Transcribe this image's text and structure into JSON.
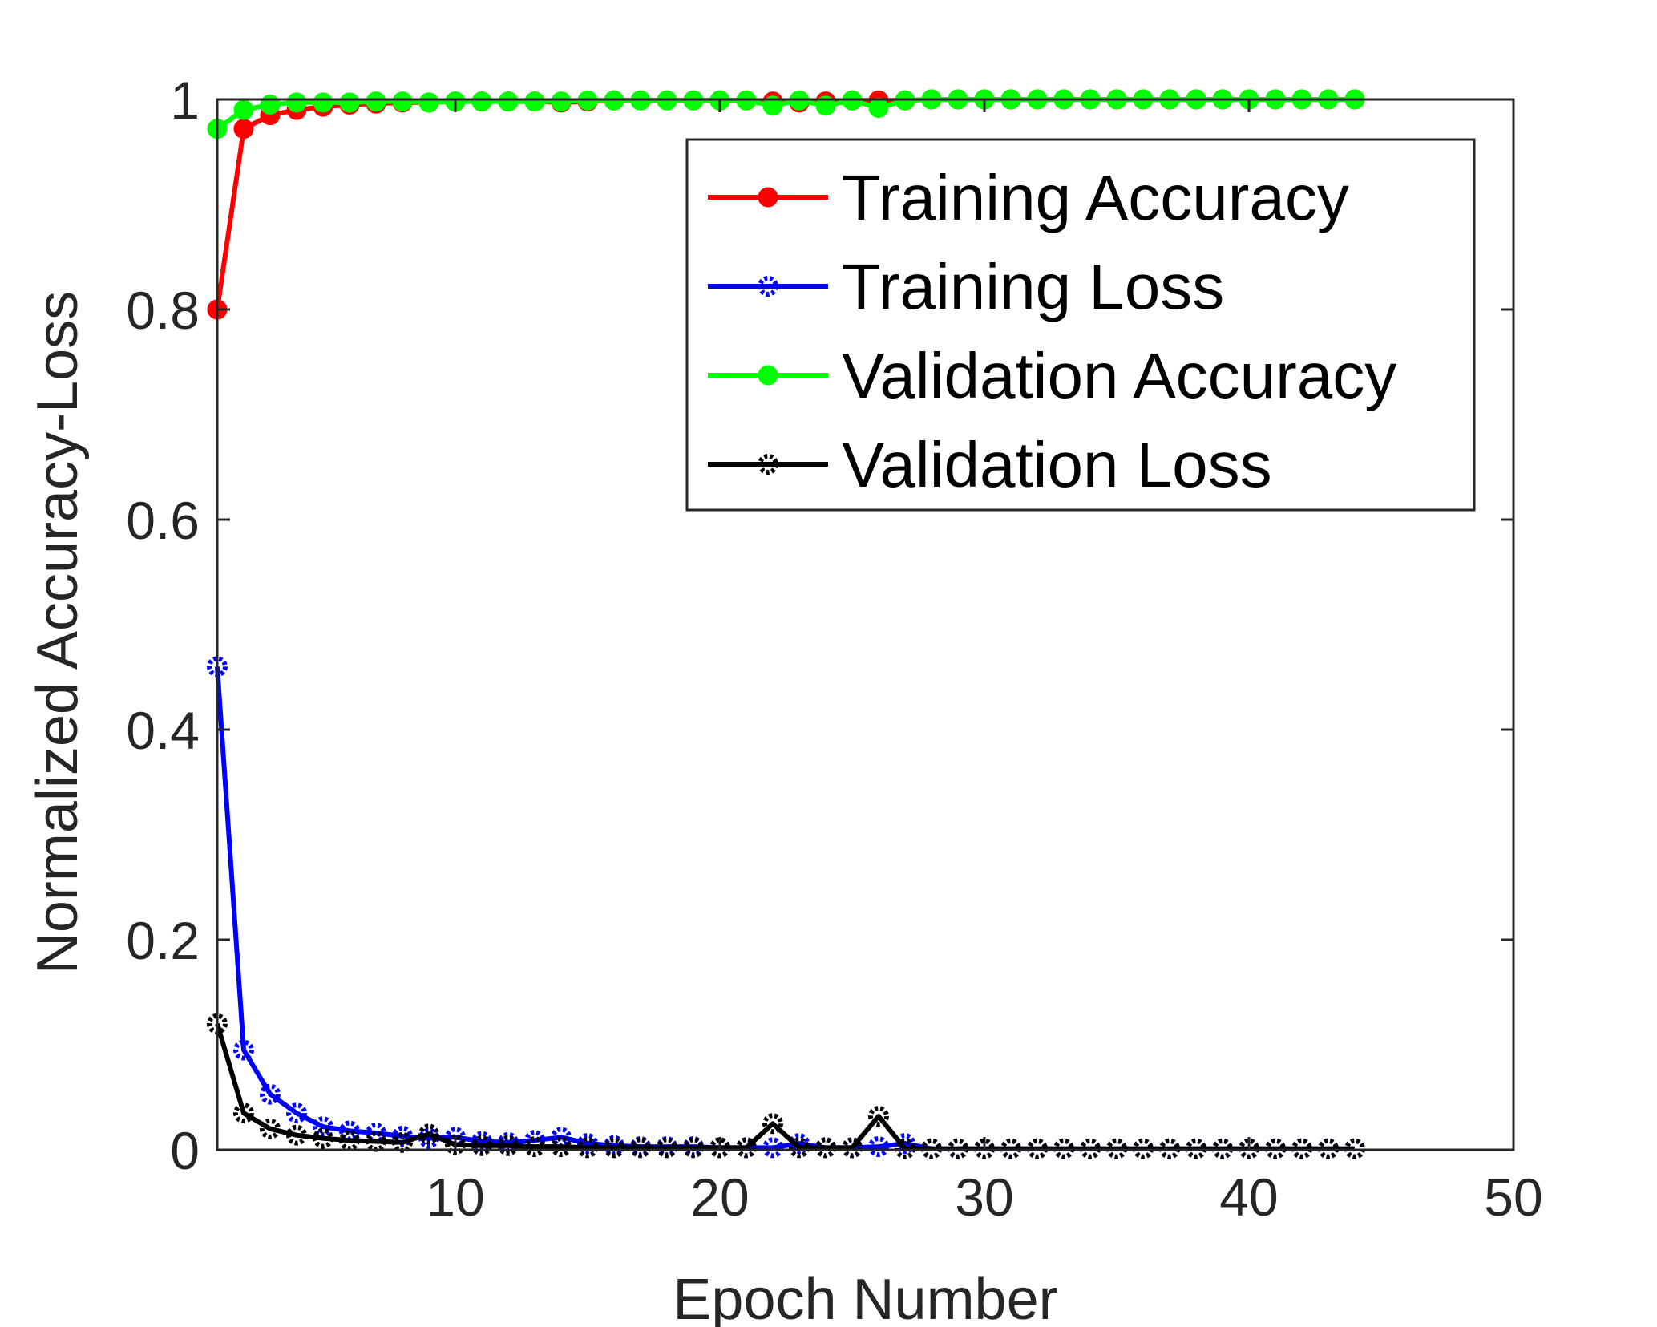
{
  "chart_data": {
    "type": "line",
    "title": "",
    "xlabel": "Epoch Number",
    "ylabel": "Normalized Accuracy-Loss",
    "xlim": [
      1,
      50
    ],
    "ylim": [
      0,
      1
    ],
    "xticks": [
      10,
      20,
      30,
      40,
      50
    ],
    "yticks": [
      0,
      0.2,
      0.4,
      0.6,
      0.8,
      1
    ],
    "ytick_labels": [
      "0",
      "0.2",
      "0.4",
      "0.6",
      "0.8",
      "1"
    ],
    "grid": false,
    "legend_position": "top-right",
    "x": [
      1,
      2,
      3,
      4,
      5,
      6,
      7,
      8,
      9,
      10,
      11,
      12,
      13,
      14,
      15,
      16,
      17,
      18,
      19,
      20,
      21,
      22,
      23,
      24,
      25,
      26,
      27,
      28,
      29,
      30,
      31,
      32,
      33,
      34,
      35,
      36,
      37,
      38,
      39,
      40,
      41,
      42,
      43,
      44
    ],
    "series": [
      {
        "name": "Training Accuracy",
        "color": "#ff0000",
        "marker": "filled",
        "values": [
          0.8,
          0.972,
          0.985,
          0.99,
          0.993,
          0.995,
          0.996,
          0.997,
          0.997,
          0.998,
          0.998,
          0.998,
          0.998,
          0.997,
          0.998,
          0.999,
          0.999,
          0.999,
          0.999,
          0.999,
          0.999,
          0.998,
          0.997,
          0.998,
          0.999,
          0.999,
          0.999,
          1,
          1,
          1,
          1,
          1,
          1,
          1,
          1,
          1,
          1,
          1,
          1,
          1,
          1,
          1,
          1,
          1
        ]
      },
      {
        "name": "Training Loss",
        "color": "#0000ff",
        "marker": "open",
        "values": [
          0.46,
          0.095,
          0.053,
          0.035,
          0.022,
          0.018,
          0.016,
          0.013,
          0.011,
          0.012,
          0.008,
          0.007,
          0.009,
          0.012,
          0.006,
          0.004,
          0.003,
          0.003,
          0.003,
          0.002,
          0.002,
          0.002,
          0.006,
          0.002,
          0.002,
          0.003,
          0.006,
          0.001,
          0.001,
          0.001,
          0.001,
          0.001,
          0.001,
          0.001,
          0.001,
          0.001,
          0.001,
          0.001,
          0.001,
          0.001,
          0.001,
          0.001,
          0.001,
          0.001
        ]
      },
      {
        "name": "Validation Accuracy",
        "color": "#00ff00",
        "marker": "filled",
        "values": [
          0.972,
          0.99,
          0.995,
          0.997,
          0.997,
          0.997,
          0.998,
          0.998,
          0.997,
          0.998,
          0.998,
          0.998,
          0.998,
          0.998,
          0.999,
          0.999,
          0.999,
          0.999,
          0.999,
          0.999,
          0.999,
          0.994,
          0.999,
          0.994,
          0.999,
          0.992,
          0.999,
          1,
          1,
          1,
          1,
          1,
          1,
          1,
          1,
          1,
          1,
          1,
          1,
          1,
          1,
          1,
          1,
          1
        ]
      },
      {
        "name": "Validation Loss",
        "color": "#000000",
        "marker": "open",
        "values": [
          0.12,
          0.035,
          0.02,
          0.014,
          0.011,
          0.009,
          0.008,
          0.007,
          0.015,
          0.005,
          0.004,
          0.004,
          0.003,
          0.003,
          0.002,
          0.002,
          0.002,
          0.002,
          0.002,
          0.002,
          0.002,
          0.025,
          0.002,
          0.002,
          0.002,
          0.032,
          0.001,
          0.001,
          0.001,
          0.001,
          0.001,
          0.001,
          0.001,
          0.001,
          0.001,
          0.001,
          0.001,
          0.001,
          0.001,
          0.001,
          0.001,
          0.001,
          0.001,
          0.001
        ]
      }
    ]
  }
}
